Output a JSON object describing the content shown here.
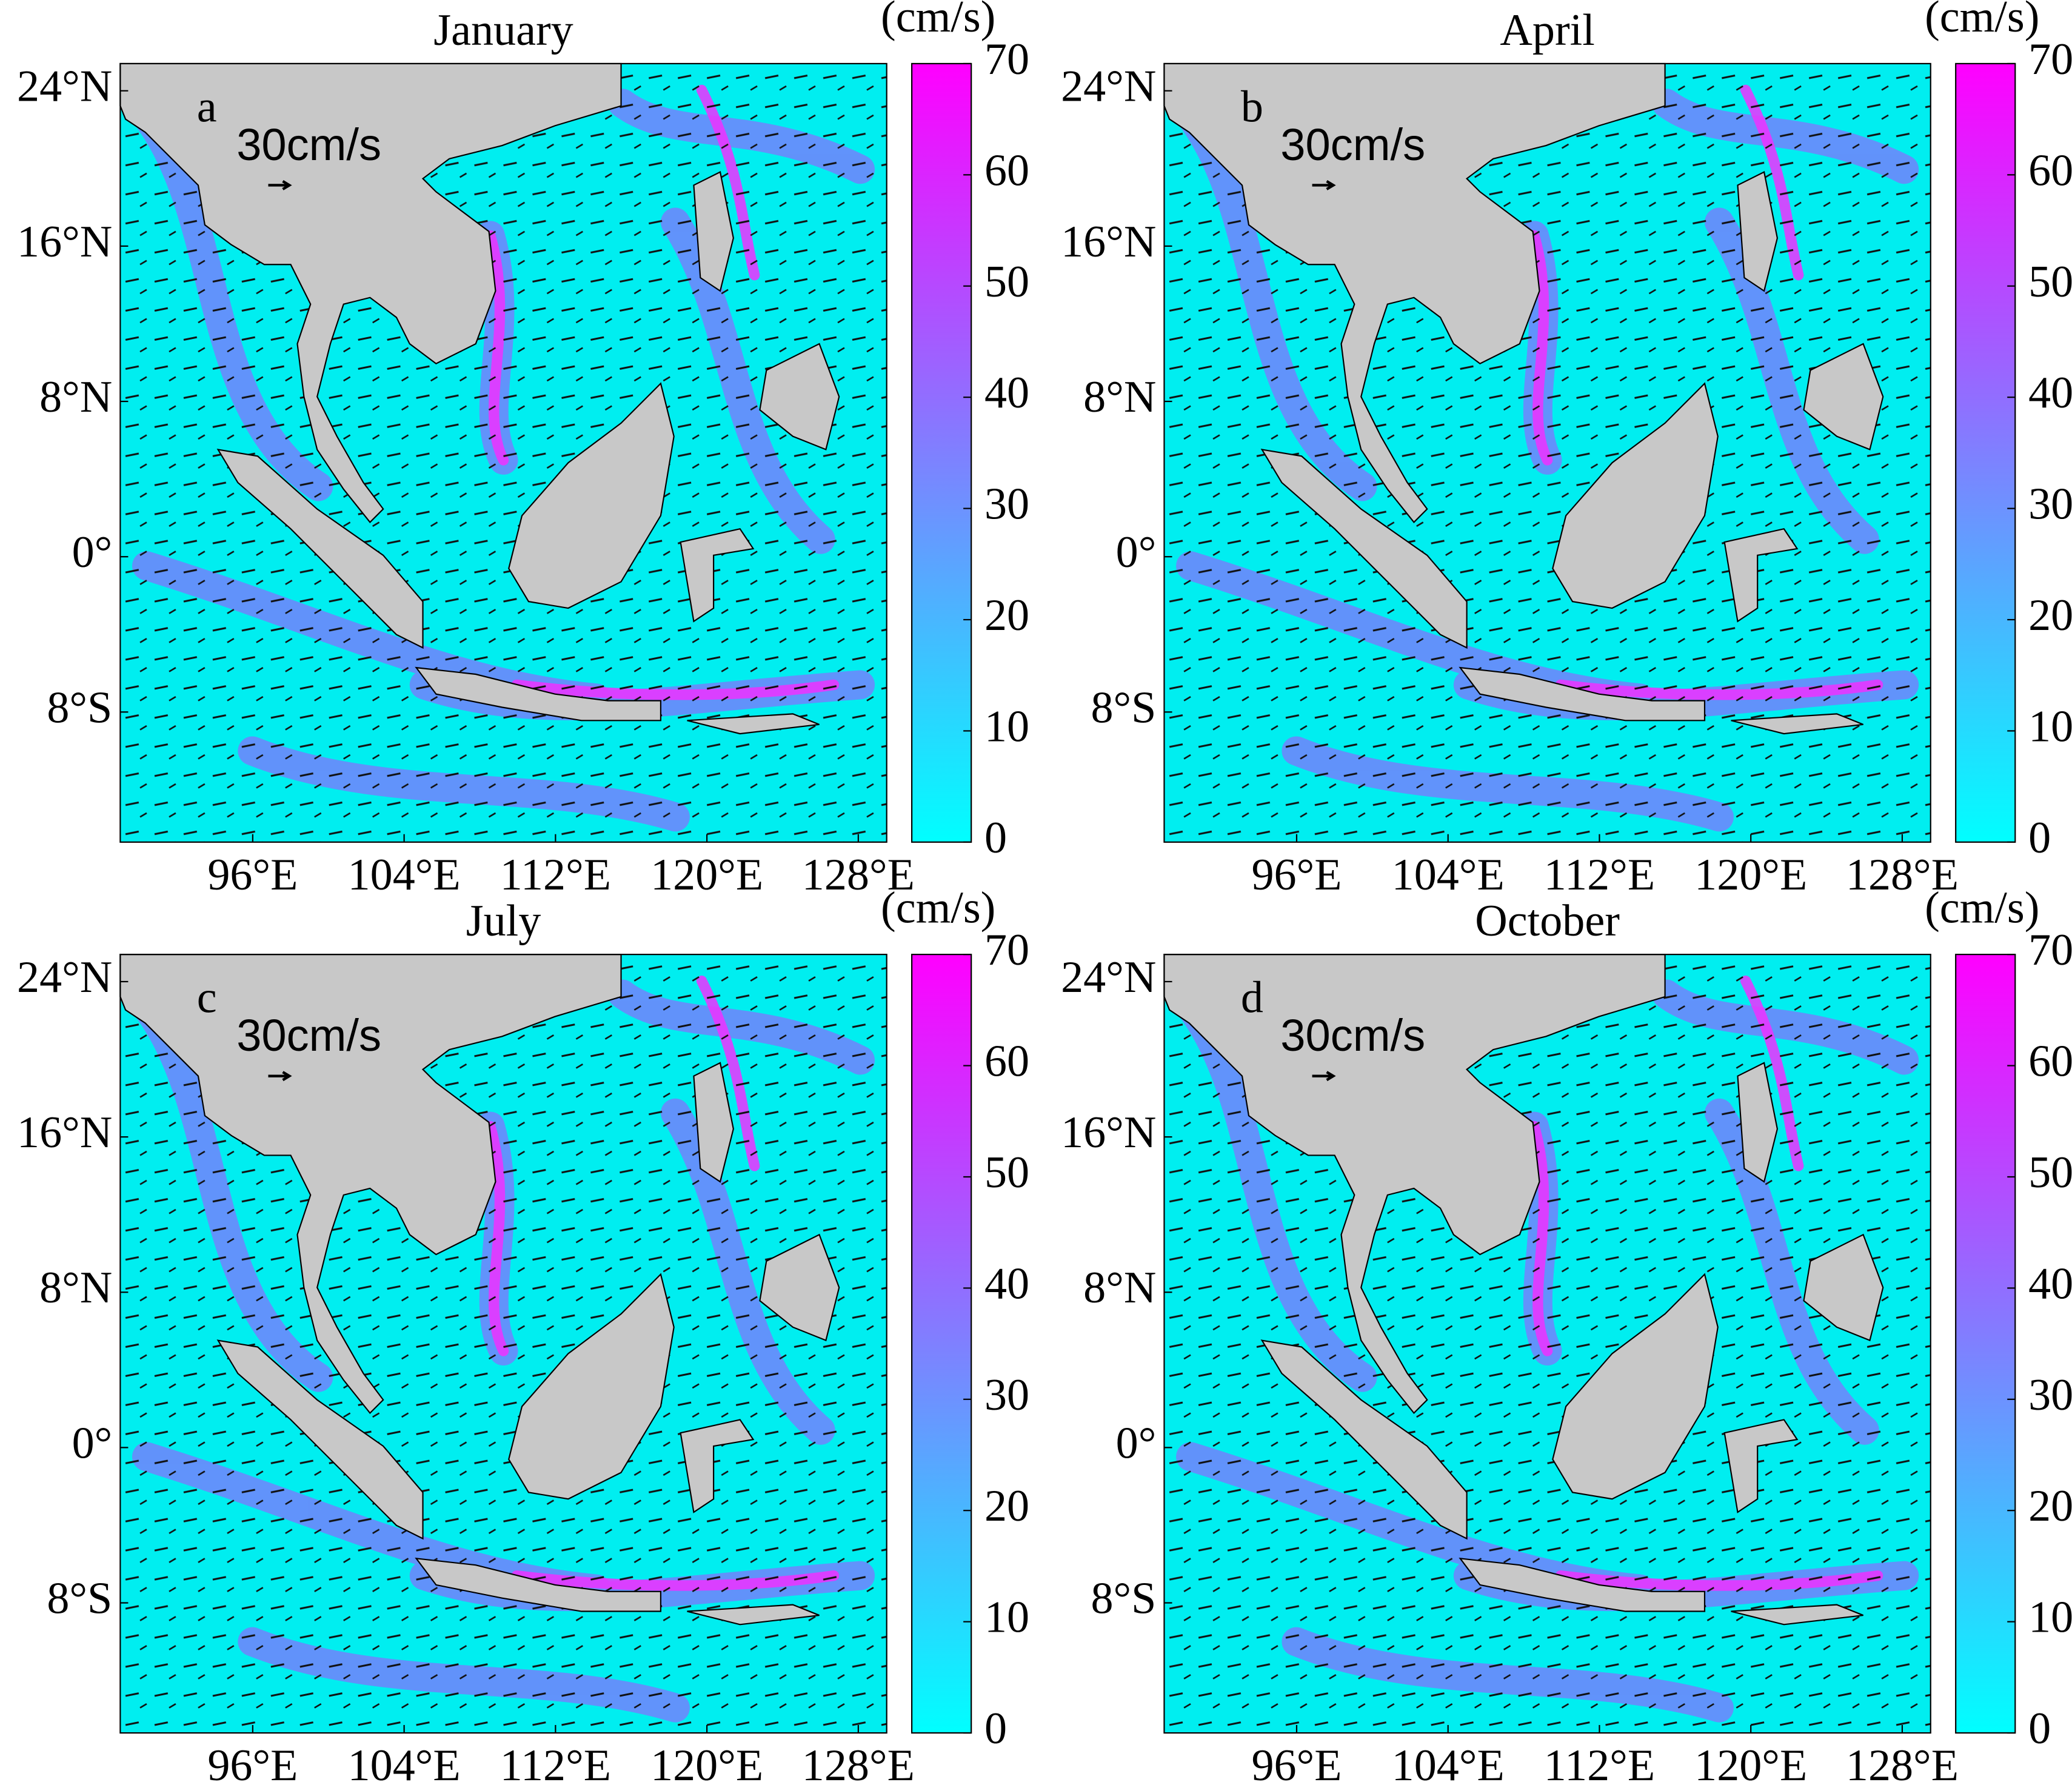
{
  "panels": [
    {
      "title": "January",
      "letter": "a",
      "scale_label": "30cm/s"
    },
    {
      "title": "April",
      "letter": "b",
      "scale_label": "30cm/s"
    },
    {
      "title": "July",
      "letter": "c",
      "scale_label": "30cm/s"
    },
    {
      "title": "October",
      "letter": "d",
      "scale_label": "30cm/s"
    }
  ],
  "colorbar": {
    "unit": "(cm/s)",
    "range": [
      0,
      70
    ],
    "ticks": [
      0,
      10,
      20,
      30,
      40,
      50,
      60,
      70
    ]
  },
  "lon_range": [
    89,
    129.5
  ],
  "lat_range": [
    -14.7,
    25.4
  ],
  "x_ticks": [
    {
      "value": 96,
      "label": "96°E"
    },
    {
      "value": 104,
      "label": "104°E"
    },
    {
      "value": 112,
      "label": "112°E"
    },
    {
      "value": 120,
      "label": "120°E"
    },
    {
      "value": 128,
      "label": "128°E"
    }
  ],
  "y_ticks": [
    {
      "value": 24,
      "label": "24°N"
    },
    {
      "value": 16,
      "label": "16°N"
    },
    {
      "value": 8,
      "label": "8°N"
    },
    {
      "value": 0,
      "label": "0°"
    },
    {
      "value": -8,
      "label": "8°S"
    }
  ]
}
